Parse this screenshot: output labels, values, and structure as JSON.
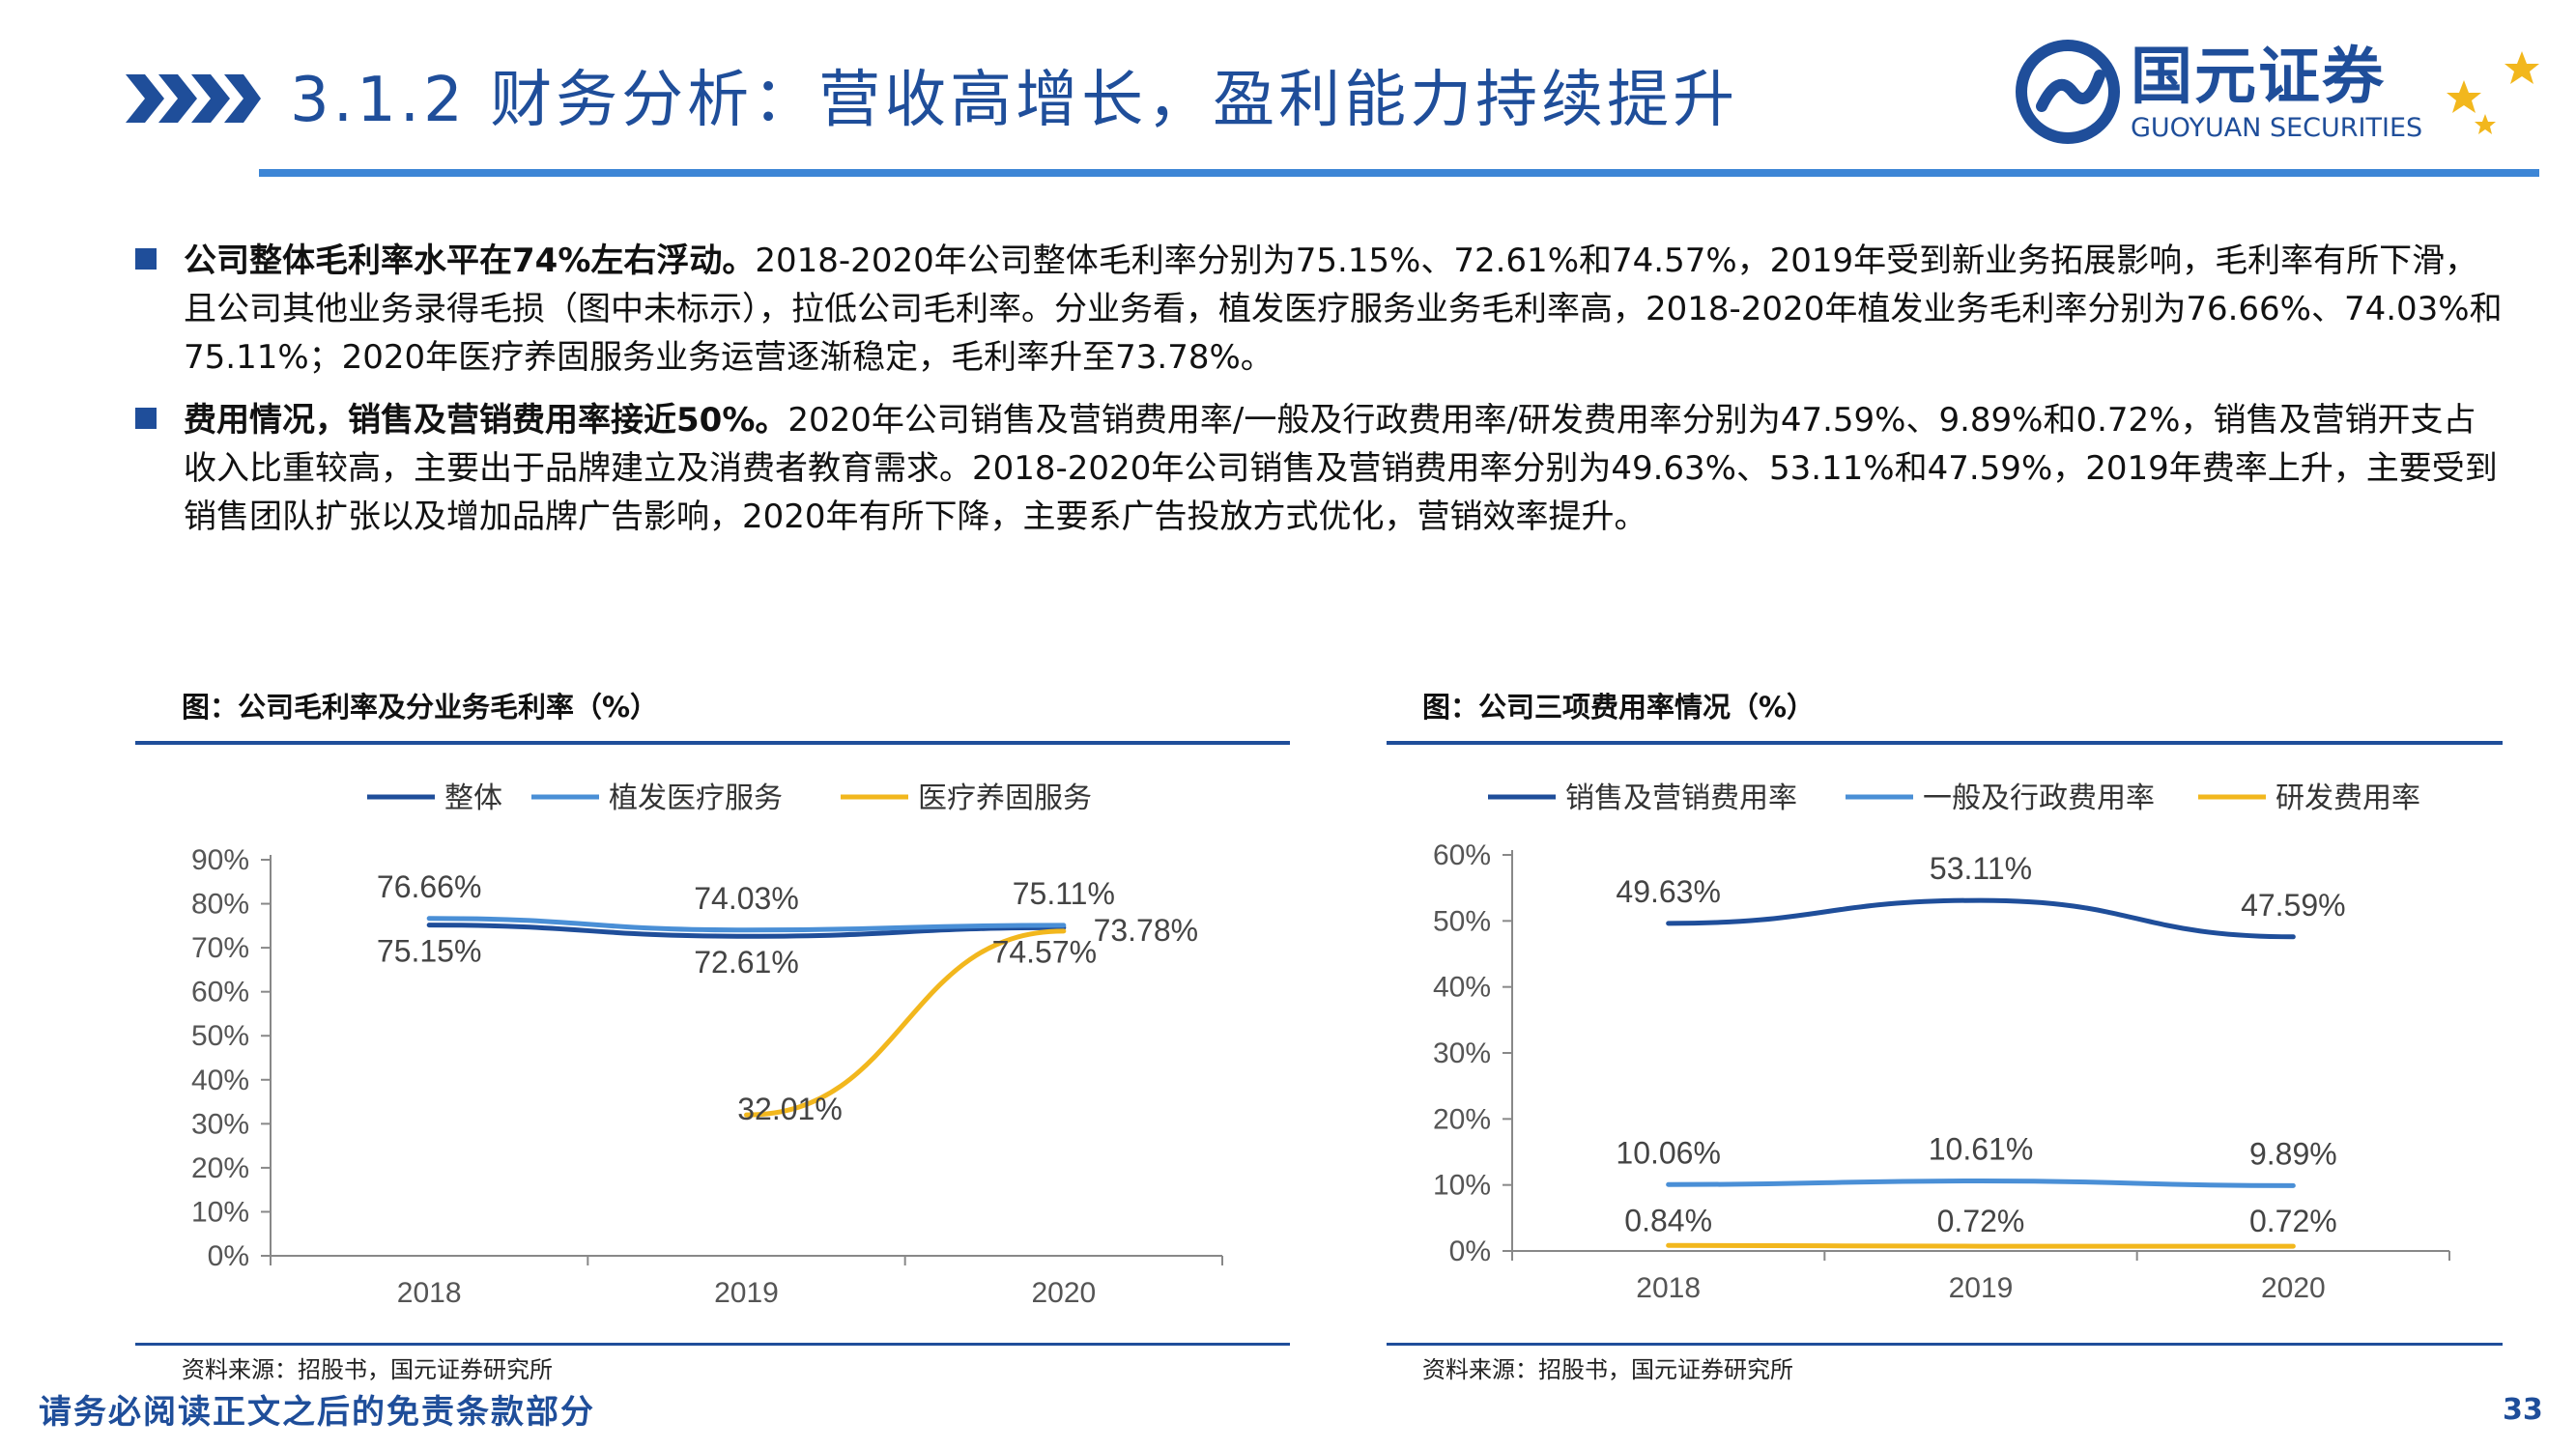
{
  "header": {
    "title": "3.1.2 财务分析：营收高增长，盈利能力持续提升",
    "logo_cn": "国元证券",
    "logo_en": "GUOYUAN SECURITIES"
  },
  "bullets": [
    {
      "lead": "公司整体毛利率水平在74%左右浮动。",
      "body": "2018-2020年公司整体毛利率分别为75.15%、72.61%和74.57%，2019年受到新业务拓展影响，毛利率有所下滑，且公司其他业务录得毛损（图中未标示），拉低公司毛利率。分业务看，植发医疗服务业务毛利率高，2018-2020年植发业务毛利率分别为76.66%、74.03%和75.11%；2020年医疗养固服务业务运营逐渐稳定，毛利率升至73.78%。"
    },
    {
      "lead": "费用情况，销售及营销费用率接近50%。",
      "body": "2020年公司销售及营销费用率/一般及行政费用率/研发费用率分别为47.59%、9.89%和0.72%，销售及营销开支占收入比重较高，主要出于品牌建立及消费者教育需求。2018-2020年公司销售及营销费用率分别为49.63%、53.11%和47.59%，2019年费率上升，主要受到销售团队扩张以及增加品牌广告影响，2020年有所下降，主要系广告投放方式优化，营销效率提升。"
    }
  ],
  "chart_left_title": "图：公司毛利率及分业务毛利率（%）",
  "chart_right_title": "图：公司三项费用率情况（%）",
  "source_left": "资料来源：招股书，国元证券研究所",
  "source_right": "资料来源：招股书，国元证券研究所",
  "footer": {
    "disclaimer": "请务必阅读正文之后的免责条款部分",
    "page": "33"
  },
  "colors": {
    "brand": "#1f4e9a",
    "rule": "#3d86d6",
    "series_dark": "#1f4e9a",
    "series_light": "#4a8fd6",
    "series_gold": "#f2b71d"
  },
  "chart_data": [
    {
      "type": "line",
      "title": "图：公司毛利率及分业务毛利率（%）",
      "categories": [
        "2018",
        "2019",
        "2020"
      ],
      "y_ticks": [
        "0%",
        "10%",
        "20%",
        "30%",
        "40%",
        "50%",
        "60%",
        "70%",
        "80%",
        "90%"
      ],
      "ylim": [
        0,
        90
      ],
      "legend_position": "top",
      "series": [
        {
          "name": "整体",
          "values": [
            75.15,
            72.61,
            74.57
          ],
          "labels": [
            "75.15%",
            "72.61%",
            "74.57%"
          ],
          "color": "#1f4e9a"
        },
        {
          "name": "植发医疗服务",
          "values": [
            76.66,
            74.03,
            75.11
          ],
          "labels": [
            "76.66%",
            "74.03%",
            "75.11%"
          ],
          "color": "#4a8fd6"
        },
        {
          "name": "医疗养固服务",
          "values": [
            null,
            32.01,
            73.78
          ],
          "labels": [
            "",
            "32.01%",
            "73.78%"
          ],
          "color": "#f2b71d"
        }
      ]
    },
    {
      "type": "line",
      "title": "图：公司三项费用率情况（%）",
      "categories": [
        "2018",
        "2019",
        "2020"
      ],
      "y_ticks": [
        "0%",
        "10%",
        "20%",
        "30%",
        "40%",
        "50%",
        "60%"
      ],
      "ylim": [
        0,
        60
      ],
      "legend_position": "top",
      "series": [
        {
          "name": "销售及营销费用率",
          "values": [
            49.63,
            53.11,
            47.59
          ],
          "labels": [
            "49.63%",
            "53.11%",
            "47.59%"
          ],
          "color": "#1f4e9a"
        },
        {
          "name": "一般及行政费用率",
          "values": [
            10.06,
            10.61,
            9.89
          ],
          "labels": [
            "10.06%",
            "10.61%",
            "9.89%"
          ],
          "color": "#4a8fd6"
        },
        {
          "name": "研发费用率",
          "values": [
            0.84,
            0.72,
            0.72
          ],
          "labels": [
            "0.84%",
            "0.72%",
            "0.72%"
          ],
          "color": "#f2b71d"
        }
      ]
    }
  ]
}
